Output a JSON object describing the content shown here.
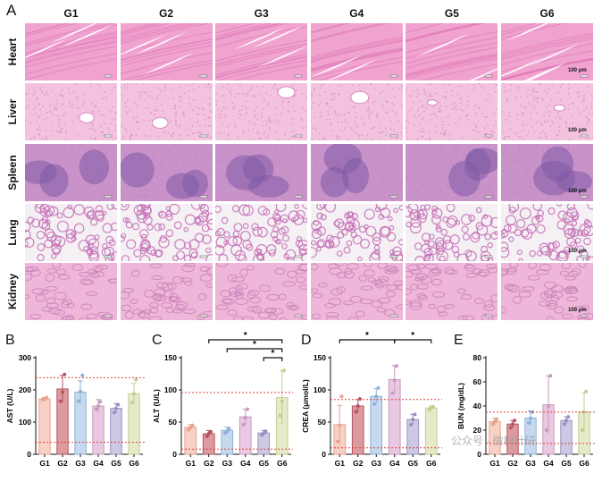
{
  "panel_a": {
    "letter": "A",
    "groups": [
      "G1",
      "G2",
      "G3",
      "G4",
      "G5",
      "G6"
    ],
    "organs": [
      {
        "name": "Heart",
        "base": "#f0a3cf",
        "accent": "#e07ab8",
        "pattern": "fiber"
      },
      {
        "name": "Liver",
        "base": "#f3c2de",
        "accent": "#d98ac0",
        "pattern": "dots"
      },
      {
        "name": "Spleen",
        "base": "#c893c9",
        "accent": "#7e5aa6",
        "pattern": "spleen"
      },
      {
        "name": "Lung",
        "base": "#f4f0f4",
        "accent": "#c66fb5",
        "pattern": "lung"
      },
      {
        "name": "Kidney",
        "base": "#eeb6d8",
        "accent": "#c980b9",
        "pattern": "kidney"
      }
    ],
    "scale_label": "100 μm"
  },
  "chart_data": [
    {
      "type": "bar",
      "panel": "B",
      "ylabel": "AST (U/L)",
      "categories": [
        "G1",
        "G2",
        "G3",
        "G4",
        "G5",
        "G6"
      ],
      "values": [
        172,
        203,
        193,
        150,
        143,
        188
      ],
      "errors": [
        5,
        42,
        35,
        20,
        15,
        32
      ],
      "points": [
        [
          170,
          171,
          176
        ],
        [
          165,
          193,
          248
        ],
        [
          165,
          195,
          245
        ],
        [
          140,
          150,
          163
        ],
        [
          130,
          142,
          154
        ],
        [
          160,
          188,
          232
        ]
      ],
      "ylim": [
        0,
        300
      ],
      "yticks": [
        0,
        100,
        200,
        300
      ],
      "ref_lines": [
        238,
        37
      ],
      "significance": []
    },
    {
      "type": "bar",
      "panel": "C",
      "ylabel": "ALT (U/L)",
      "categories": [
        "G1",
        "G2",
        "G3",
        "G4",
        "G5",
        "G6"
      ],
      "values": [
        42,
        32,
        37,
        58,
        33,
        88
      ],
      "errors": [
        4,
        5,
        5,
        12,
        4,
        42
      ],
      "points": [
        [
          38,
          42,
          45
        ],
        [
          28,
          32,
          35
        ],
        [
          33,
          36,
          40
        ],
        [
          46,
          57,
          70
        ],
        [
          30,
          33,
          36
        ],
        [
          60,
          82,
          130
        ]
      ],
      "ylim": [
        0,
        150
      ],
      "yticks": [
        0,
        50,
        100,
        150
      ],
      "ref_lines": [
        96,
        8
      ],
      "significance": [
        {
          "from": 1,
          "to": 5,
          "level": 0,
          "label": "*"
        },
        {
          "from": 2,
          "to": 5,
          "level": 1,
          "label": "*"
        },
        {
          "from": 4,
          "to": 5,
          "level": 2,
          "label": "*"
        }
      ]
    },
    {
      "type": "bar",
      "panel": "D",
      "ylabel": "CREA (μmol/L)",
      "categories": [
        "G1",
        "G2",
        "G3",
        "G4",
        "G5",
        "G6"
      ],
      "values": [
        46,
        75,
        90,
        116,
        54,
        72
      ],
      "errors": [
        30,
        10,
        12,
        22,
        8,
        3
      ],
      "points": [
        [
          20,
          45,
          90
        ],
        [
          66,
          75,
          86
        ],
        [
          78,
          90,
          103
        ],
        [
          95,
          115,
          137
        ],
        [
          46,
          54,
          62
        ],
        [
          69,
          72,
          74
        ]
      ],
      "ylim": [
        0,
        150
      ],
      "yticks": [
        0,
        50,
        100,
        150
      ],
      "ref_lines": [
        85,
        10
      ],
      "significance": [
        {
          "from": 0,
          "to": 3,
          "level": 0,
          "label": "*"
        },
        {
          "from": 3,
          "to": 5,
          "level": 0,
          "label": "*"
        }
      ]
    },
    {
      "type": "bar",
      "panel": "E",
      "ylabel": "BUN (mg/dL)",
      "categories": [
        "G1",
        "G2",
        "G3",
        "G4",
        "G5",
        "G6"
      ],
      "values": [
        27,
        25,
        30,
        41,
        28,
        35
      ],
      "errors": [
        3,
        3,
        6,
        24,
        3,
        16
      ],
      "points": [
        [
          25,
          27,
          29
        ],
        [
          22,
          25,
          28
        ],
        [
          26,
          30,
          35
        ],
        [
          20,
          40,
          65
        ],
        [
          25,
          28,
          31
        ],
        [
          20,
          35,
          52
        ]
      ],
      "ylim": [
        0,
        80
      ],
      "yticks": [
        0,
        20,
        40,
        60,
        80
      ],
      "ref_lines": [
        35,
        9
      ],
      "significance": []
    }
  ],
  "bar_colors": [
    {
      "fill": "#f6d1c4",
      "stroke": "#e6a48f"
    },
    {
      "fill": "#dd9a9f",
      "stroke": "#b55562"
    },
    {
      "fill": "#c7d9ef",
      "stroke": "#8fb1d9"
    },
    {
      "fill": "#e9c9e1",
      "stroke": "#c79ac0"
    },
    {
      "fill": "#cfc8e3",
      "stroke": "#9b90c0"
    },
    {
      "fill": "#e5eacb",
      "stroke": "#c5cd91"
    }
  ],
  "ref_line_color": "#e04040",
  "watermark": "公众号 · 微科针研"
}
